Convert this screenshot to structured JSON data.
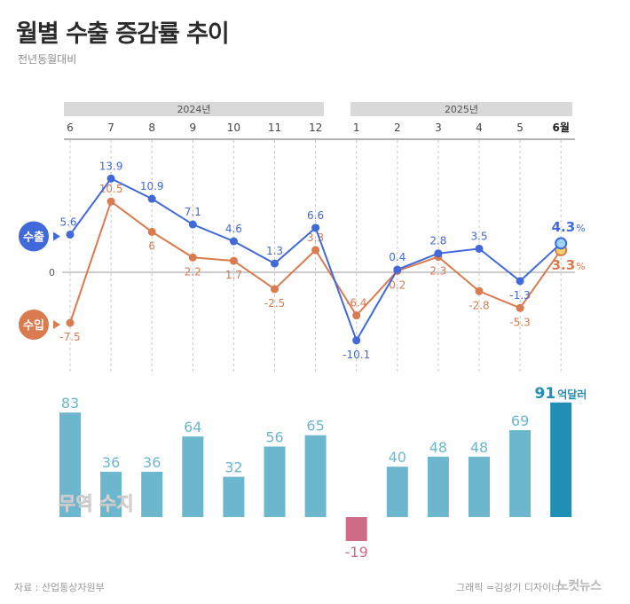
{
  "header": {
    "title": "월별 수출 증감률 추이",
    "subtitle": "전년동월대비"
  },
  "footer": {
    "source": "자료 : 산업통상자원부",
    "credit": "그래픽 =김성기 디자이너",
    "brand": "노컷뉴스"
  },
  "colors": {
    "export": "#4169d9",
    "import": "#d97a4f",
    "balance": "#6cb7ce",
    "balance_latest": "#1f8fb4",
    "balance_negative": "#cf6b85",
    "year_band": "#d9d9d9",
    "gridline": "#c8c8c8"
  },
  "chart_data": [
    {
      "type": "line",
      "title": "월별 수출 증감률 추이",
      "subtitle": "전년동월대비",
      "year_labels": [
        {
          "label": "2024년",
          "months": [
            "6",
            "7",
            "8",
            "9",
            "10",
            "11",
            "12"
          ]
        },
        {
          "label": "2025년",
          "months": [
            "1",
            "2",
            "3",
            "4",
            "5",
            "6월"
          ]
        }
      ],
      "categories": [
        "6",
        "7",
        "8",
        "9",
        "10",
        "11",
        "12",
        "1",
        "2",
        "3",
        "4",
        "5",
        "6월"
      ],
      "zero_label": "0",
      "series": [
        {
          "name": "수출",
          "values": [
            5.6,
            13.9,
            10.9,
            7.1,
            4.6,
            1.3,
            6.6,
            -10.1,
            0.4,
            2.8,
            3.5,
            -1.3,
            4.3
          ],
          "latest_label": "4.3",
          "unit": "%"
        },
        {
          "name": "수입",
          "values": [
            -7.5,
            10.5,
            6.0,
            2.2,
            1.7,
            -2.5,
            3.3,
            -6.4,
            0.2,
            2.3,
            -2.8,
            -5.3,
            3.3
          ],
          "latest_label": "3.3",
          "unit": "%"
        }
      ],
      "ylim": [
        -12,
        16
      ],
      "legend": "left"
    },
    {
      "type": "bar",
      "title": "무역 수지",
      "categories": [
        "6",
        "7",
        "8",
        "9",
        "10",
        "11",
        "12",
        "1",
        "2",
        "3",
        "4",
        "5",
        "6월"
      ],
      "values": [
        83,
        36,
        36,
        64,
        32,
        56,
        65,
        -19,
        40,
        48,
        48,
        69,
        91
      ],
      "latest_unit": "억달러"
    }
  ]
}
